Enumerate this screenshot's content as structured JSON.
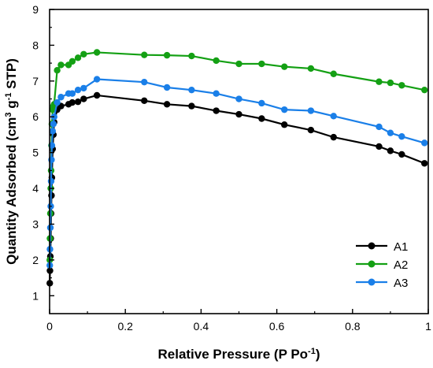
{
  "chart_data": {
    "type": "line",
    "xlabel": "Relative Pressure (P Po",
    "xlabel_sup": "-1",
    "xlabel_end": ")",
    "ylabel_pre": "Quantity Adsorbed (cm",
    "ylabel_sup1": "3",
    "ylabel_mid": " g",
    "ylabel_sup2": "-1",
    "ylabel_end": " STP)",
    "xlim": [
      0,
      1
    ],
    "ylim": [
      0.5,
      9
    ],
    "xticks": [
      0,
      0.2,
      0.4,
      0.6,
      0.8,
      1
    ],
    "xtick_labels": [
      "0",
      "0.2",
      "0.4",
      "0.6",
      "0.8",
      "1"
    ],
    "yticks": [
      1,
      2,
      3,
      4,
      5,
      6,
      7,
      8,
      9
    ],
    "ytick_labels": [
      "1",
      "2",
      "3",
      "4",
      "5",
      "6",
      "7",
      "8",
      "9"
    ],
    "grid": false,
    "legend_position": "bottom-right",
    "series": [
      {
        "name": "A1",
        "color": "#000000",
        "x": [
          0.0005,
          0.001,
          0.002,
          0.003,
          0.004,
          0.005,
          0.006,
          0.008,
          0.01,
          0.012,
          0.02,
          0.03,
          0.05,
          0.06,
          0.075,
          0.09,
          0.125,
          0.25,
          0.31,
          0.375,
          0.44,
          0.5,
          0.56,
          0.62,
          0.69,
          0.75,
          0.87,
          0.9,
          0.93,
          0.99
        ],
        "y": [
          1.35,
          1.7,
          2.1,
          2.6,
          3.3,
          3.8,
          4.3,
          5.1,
          5.5,
          5.85,
          6.2,
          6.3,
          6.35,
          6.4,
          6.42,
          6.5,
          6.6,
          6.45,
          6.35,
          6.3,
          6.17,
          6.07,
          5.95,
          5.78,
          5.63,
          5.43,
          5.17,
          5.05,
          4.95,
          4.7
        ]
      },
      {
        "name": "A2",
        "color": "#14a014",
        "x": [
          0.0005,
          0.001,
          0.002,
          0.003,
          0.004,
          0.005,
          0.006,
          0.008,
          0.01,
          0.012,
          0.02,
          0.03,
          0.05,
          0.06,
          0.075,
          0.09,
          0.125,
          0.25,
          0.31,
          0.375,
          0.44,
          0.5,
          0.56,
          0.62,
          0.69,
          0.75,
          0.87,
          0.9,
          0.93,
          0.99
        ],
        "y": [
          2.0,
          2.6,
          3.3,
          4.0,
          4.5,
          5.2,
          5.8,
          6.2,
          6.3,
          6.35,
          7.3,
          7.45,
          7.45,
          7.55,
          7.65,
          7.75,
          7.8,
          7.73,
          7.72,
          7.7,
          7.57,
          7.48,
          7.48,
          7.4,
          7.35,
          7.2,
          6.98,
          6.95,
          6.88,
          6.75
        ]
      },
      {
        "name": "A3",
        "color": "#1a7fe8",
        "x": [
          0.0005,
          0.001,
          0.002,
          0.003,
          0.004,
          0.005,
          0.006,
          0.008,
          0.01,
          0.012,
          0.02,
          0.03,
          0.05,
          0.06,
          0.075,
          0.09,
          0.125,
          0.25,
          0.31,
          0.375,
          0.44,
          0.5,
          0.56,
          0.62,
          0.69,
          0.75,
          0.87,
          0.9,
          0.93,
          0.99
        ],
        "y": [
          1.85,
          2.3,
          2.9,
          3.5,
          4.2,
          4.8,
          5.2,
          5.6,
          5.8,
          6.0,
          6.4,
          6.55,
          6.65,
          6.65,
          6.75,
          6.8,
          7.05,
          6.97,
          6.82,
          6.75,
          6.65,
          6.5,
          6.38,
          6.2,
          6.17,
          6.02,
          5.72,
          5.55,
          5.45,
          5.27
        ]
      }
    ]
  }
}
